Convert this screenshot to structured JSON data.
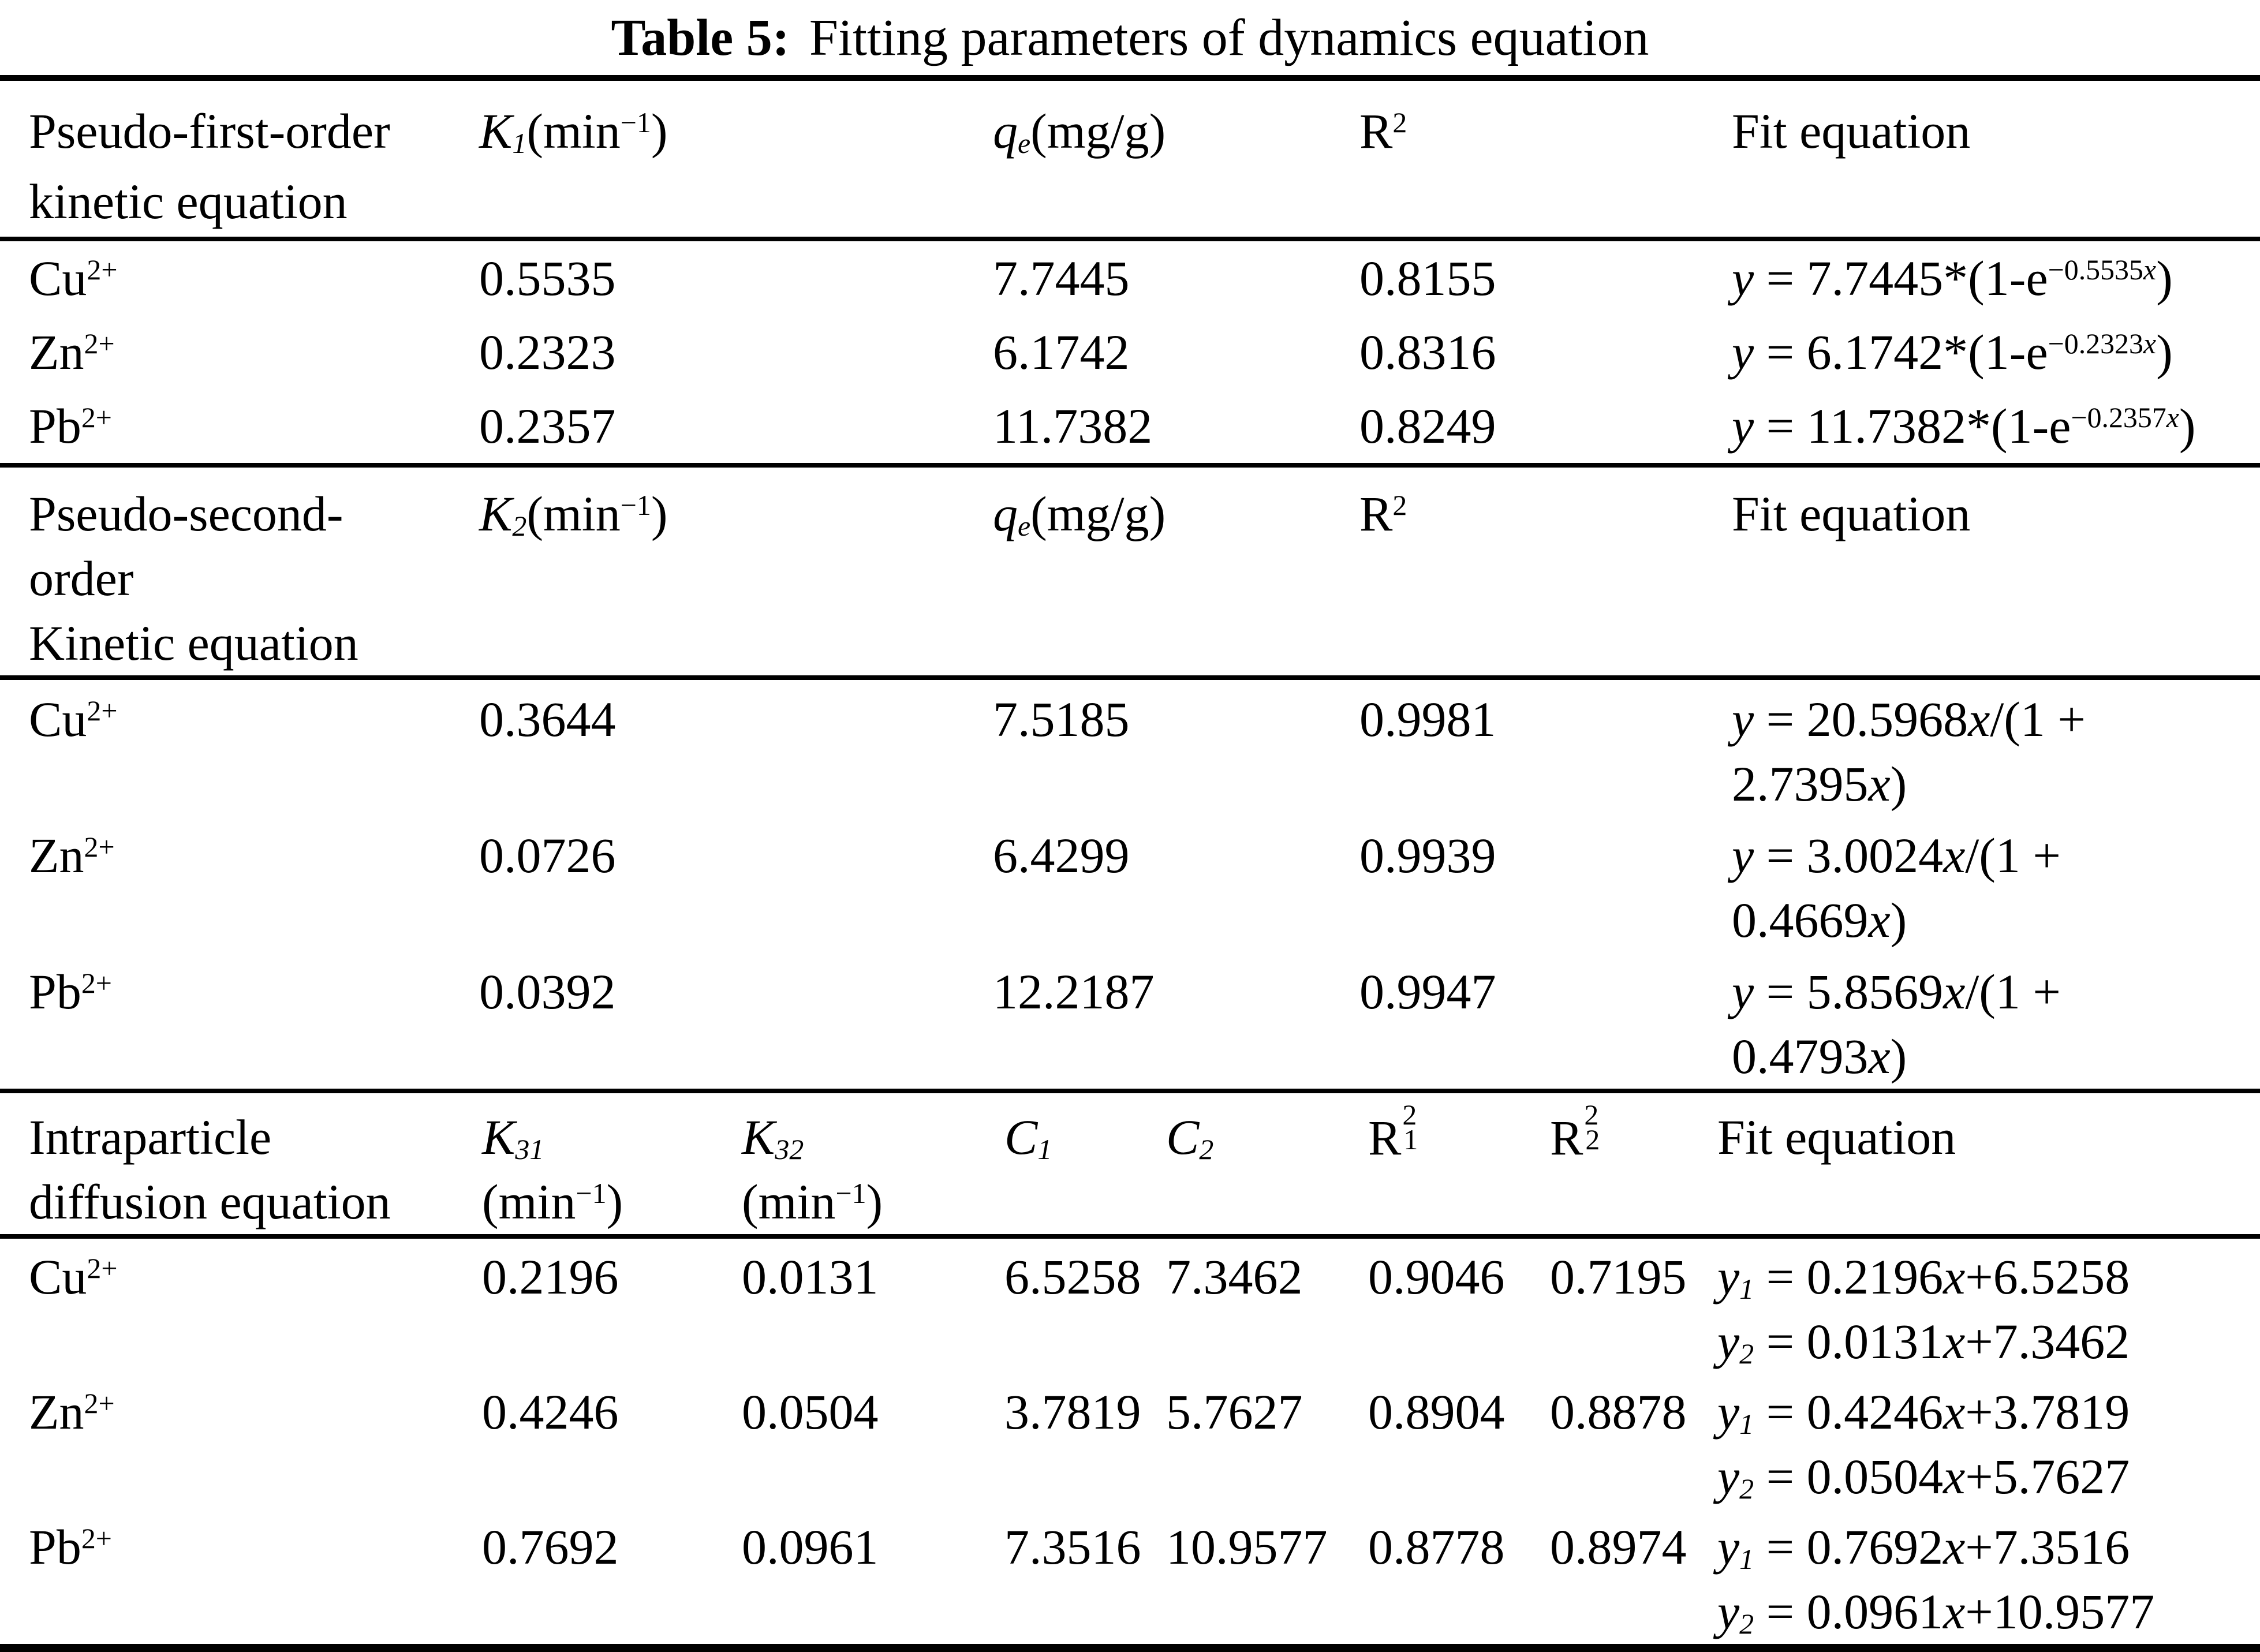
{
  "colors": {
    "background": "#ffffff",
    "text": "#000000"
  },
  "title": {
    "label": "Table 5:",
    "text": "Fitting parameters of dynamics equation"
  },
  "sym": {
    "y": "y",
    "x": "x"
  },
  "s1": {
    "name1": "Pseudo-first-order",
    "name2": "kinetic equation",
    "hk": {
      "sym": "K",
      "sub": "1",
      "open": "(min",
      "exp": "−1",
      "close": ")"
    },
    "hq": {
      "sym": "q",
      "sub": "e",
      "unit": "(mg/g)"
    },
    "hr": {
      "sym": "R",
      "sup": "2"
    },
    "hfit": "Fit equation",
    "rows": [
      {
        "ion": "Cu",
        "chg": "2+",
        "k": "0.5535",
        "qe": "7.7445",
        "r2": "0.8155",
        "pre": " = 7.7445*(1-e",
        "exp": "−0.5535",
        "close": ")"
      },
      {
        "ion": "Zn",
        "chg": "2+",
        "k": "0.2323",
        "qe": "6.1742",
        "r2": "0.8316",
        "pre": " = 6.1742*(1-e",
        "exp": "−0.2323",
        "close": ")"
      },
      {
        "ion": "Pb",
        "chg": "2+",
        "k": "0.2357",
        "qe": "11.7382",
        "r2": "0.8249",
        "pre": " = 11.7382*(1-e",
        "exp": "−0.2357",
        "close": ")"
      }
    ]
  },
  "s2": {
    "name1": "Pseudo-second-",
    "name2": "order",
    "name3": "Kinetic equation",
    "hk": {
      "sym": "K",
      "sub": "2",
      "open": "(min",
      "exp": "−1",
      "close": ")"
    },
    "hq": {
      "sym": "q",
      "sub": "e",
      "unit": "(mg/g)"
    },
    "hr": {
      "sym": "R",
      "sup": "2"
    },
    "hfit": "Fit equation",
    "rows": [
      {
        "ion": "Cu",
        "chg": "2+",
        "k": "0.3644",
        "qe": "7.5185",
        "r2": "0.9981",
        "l1a": " = 20.5968",
        "l1b": "/(1 +",
        "l2a": "2.7395",
        "l2b": ")"
      },
      {
        "ion": "Zn",
        "chg": "2+",
        "k": "0.0726",
        "qe": "6.4299",
        "r2": "0.9939",
        "l1a": " = 3.0024",
        "l1b": "/(1 +",
        "l2a": "0.4669",
        "l2b": ")"
      },
      {
        "ion": "Pb",
        "chg": "2+",
        "k": "0.0392",
        "qe": "12.2187",
        "r2": "0.9947",
        "l1a": " = 5.8569",
        "l1b": "/(1 +",
        "l2a": "0.4793",
        "l2b": ")"
      }
    ]
  },
  "s3": {
    "name1": "Intraparticle",
    "name2": "diffusion equation",
    "hk31": {
      "sym": "K",
      "sub": "31",
      "open": "(min",
      "exp": "−1",
      "close": ")"
    },
    "hk32": {
      "sym": "K",
      "sub": "32",
      "open": "(min",
      "exp": "−1",
      "close": ")"
    },
    "hc1": {
      "sym": "C",
      "sub": "1"
    },
    "hc2": {
      "sym": "C",
      "sub": "2"
    },
    "hr1": {
      "sym": "R",
      "sup": "2",
      "sub": "1"
    },
    "hr2": {
      "sym": "R",
      "sup": "2",
      "sub": "2"
    },
    "hfit": "Fit equation",
    "rows": [
      {
        "ion": "Cu",
        "chg": "2+",
        "k31": "0.2196",
        "k32": "0.0131",
        "c1": "6.5258",
        "c2": "7.3462",
        "r21": "0.9046",
        "r22": "0.7195",
        "e1sub": "1",
        "e1a": " = 0.2196",
        "e1b": "+6.5258",
        "e2sub": "2",
        "e2a": " = 0.0131",
        "e2b": "+7.3462"
      },
      {
        "ion": "Zn",
        "chg": "2+",
        "k31": "0.4246",
        "k32": "0.0504",
        "c1": "3.7819",
        "c2": "5.7627",
        "r21": "0.8904",
        "r22": "0.8878",
        "e1sub": "1",
        "e1a": " = 0.4246",
        "e1b": "+3.7819",
        "e2sub": "2",
        "e2a": " = 0.0504",
        "e2b": "+5.7627"
      },
      {
        "ion": "Pb",
        "chg": "2+",
        "k31": "0.7692",
        "k32": "0.0961",
        "c1": "7.3516",
        "c2": "10.9577",
        "r21": "0.8778",
        "r22": "0.8974",
        "e1sub": "1",
        "e1a": " = 0.7692",
        "e1b": "+7.3516",
        "e2sub": "2",
        "e2a": " = 0.0961",
        "e2b": "+10.9577"
      }
    ]
  }
}
